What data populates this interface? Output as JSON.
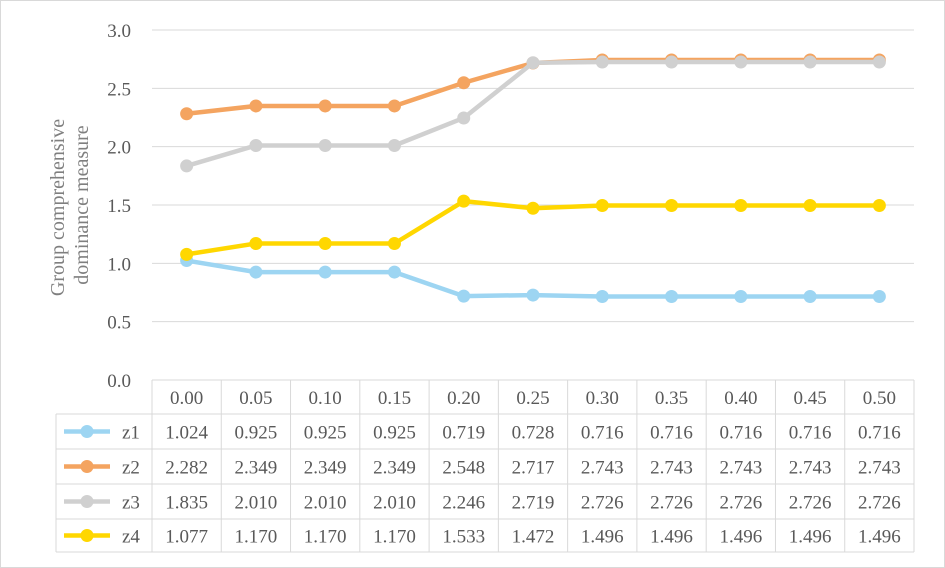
{
  "chart_data": {
    "type": "line",
    "ylabel": "Group comprehensive dominance measure",
    "ylabel_lines": [
      "Group comprehensive",
      "dominance measure"
    ],
    "ylim": [
      0,
      3.0
    ],
    "yticks": [
      "0.0",
      "0.5",
      "1.0",
      "1.5",
      "2.0",
      "2.5",
      "3.0"
    ],
    "grid": true,
    "legend": "data-table",
    "categories": [
      "0.00",
      "0.05",
      "0.10",
      "0.15",
      "0.20",
      "0.25",
      "0.30",
      "0.35",
      "0.40",
      "0.45",
      "0.50"
    ],
    "series": [
      {
        "name": "z1",
        "color": "#9dd5f2",
        "values": [
          1.024,
          0.925,
          0.925,
          0.925,
          0.719,
          0.728,
          0.716,
          0.716,
          0.716,
          0.716,
          0.716
        ],
        "labels": [
          "1.024",
          "0.925",
          "0.925",
          "0.925",
          "0.719",
          "0.728",
          "0.716",
          "0.716",
          "0.716",
          "0.716",
          "0.716"
        ]
      },
      {
        "name": "z2",
        "color": "#f4a460",
        "values": [
          2.282,
          2.349,
          2.349,
          2.349,
          2.548,
          2.717,
          2.743,
          2.743,
          2.743,
          2.743,
          2.743
        ],
        "labels": [
          "2.282",
          "2.349",
          "2.349",
          "2.349",
          "2.548",
          "2.717",
          "2.743",
          "2.743",
          "2.743",
          "2.743",
          "2.743"
        ]
      },
      {
        "name": "z3",
        "color": "#d0d0d0",
        "values": [
          1.835,
          2.01,
          2.01,
          2.01,
          2.246,
          2.719,
          2.726,
          2.726,
          2.726,
          2.726,
          2.726
        ],
        "labels": [
          "1.835",
          "2.010",
          "2.010",
          "2.010",
          "2.246",
          "2.719",
          "2.726",
          "2.726",
          "2.726",
          "2.726",
          "2.726"
        ]
      },
      {
        "name": "z4",
        "color": "#ffd700",
        "values": [
          1.077,
          1.17,
          1.17,
          1.17,
          1.533,
          1.472,
          1.496,
          1.496,
          1.496,
          1.496,
          1.496
        ],
        "labels": [
          "1.077",
          "1.170",
          "1.170",
          "1.170",
          "1.533",
          "1.472",
          "1.496",
          "1.496",
          "1.496",
          "1.496",
          "1.496"
        ]
      }
    ]
  }
}
